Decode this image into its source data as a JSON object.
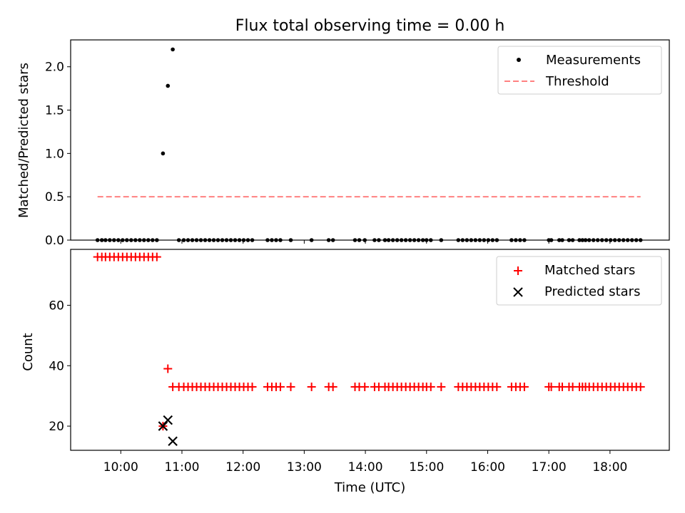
{
  "chart_data": [
    {
      "type": "scatter",
      "title": "Flux total observing time = 0.00 h",
      "xlabel": "",
      "ylabel": "Matched/Predicted stars",
      "xlim": [
        9.18,
        18.97
      ],
      "ylim": [
        0.0,
        2.31
      ],
      "yticks": [
        0.0,
        0.5,
        1.0,
        1.5,
        2.0
      ],
      "ytick_labels": [
        "0.0",
        "0.5",
        "1.0",
        "1.5",
        "2.0"
      ],
      "legend": {
        "position": "upper right",
        "entries": [
          "Measurements",
          "Threshold"
        ]
      },
      "colors": {
        "measurements": "#000000",
        "threshold": "#ff8080"
      },
      "series": [
        {
          "name": "Measurements",
          "marker": "dot",
          "x": [
            9.62,
            9.69,
            9.75,
            9.82,
            9.89,
            9.96,
            10.03,
            10.1,
            10.17,
            10.24,
            10.31,
            10.38,
            10.45,
            10.52,
            10.59,
            10.69,
            10.77,
            10.85,
            10.95,
            11.03,
            11.1,
            11.17,
            11.24,
            11.31,
            11.38,
            11.45,
            11.52,
            11.59,
            11.66,
            11.73,
            11.8,
            11.87,
            11.94,
            12.01,
            12.08,
            12.15,
            12.4,
            12.47,
            12.54,
            12.61,
            12.78,
            13.12,
            13.4,
            13.47,
            13.83,
            13.9,
            13.99,
            14.15,
            14.22,
            14.32,
            14.38,
            14.45,
            14.52,
            14.59,
            14.66,
            14.73,
            14.8,
            14.87,
            14.94,
            15.0,
            15.07,
            15.24,
            15.52,
            15.59,
            15.66,
            15.73,
            15.8,
            15.87,
            15.94,
            16.01,
            16.08,
            16.15,
            16.39,
            16.46,
            16.53,
            16.6,
            17.0,
            17.04,
            17.17,
            17.22,
            17.33,
            17.39,
            17.5,
            17.55,
            17.6,
            17.66,
            17.73,
            17.8,
            17.87,
            17.94,
            18.01,
            18.08,
            18.15,
            18.22,
            18.29,
            18.36,
            18.43,
            18.5
          ],
          "y": [
            0,
            0,
            0,
            0,
            0,
            0,
            0,
            0,
            0,
            0,
            0,
            0,
            0,
            0,
            0,
            1.0,
            1.78,
            2.2,
            0,
            0,
            0,
            0,
            0,
            0,
            0,
            0,
            0,
            0,
            0,
            0,
            0,
            0,
            0,
            0,
            0,
            0,
            0,
            0,
            0,
            0,
            0,
            0,
            0,
            0,
            0,
            0,
            0,
            0,
            0,
            0,
            0,
            0,
            0,
            0,
            0,
            0,
            0,
            0,
            0,
            0,
            0,
            0,
            0,
            0,
            0,
            0,
            0,
            0,
            0,
            0,
            0,
            0,
            0,
            0,
            0,
            0,
            0,
            0,
            0,
            0,
            0,
            0,
            0,
            0,
            0,
            0,
            0,
            0,
            0,
            0,
            0,
            0,
            0,
            0,
            0,
            0,
            0,
            0
          ]
        },
        {
          "name": "Threshold",
          "style": "dashed",
          "x": [
            9.62,
            18.5
          ],
          "y": [
            0.5,
            0.5
          ]
        }
      ]
    },
    {
      "type": "scatter",
      "title": "",
      "xlabel": "Time (UTC)",
      "ylabel": "Count",
      "xlim": [
        9.18,
        18.97
      ],
      "ylim": [
        12.0,
        78.5
      ],
      "yticks": [
        20,
        40,
        60
      ],
      "ytick_labels": [
        "20",
        "40",
        "60"
      ],
      "xticks": [
        10,
        11,
        12,
        13,
        14,
        15,
        16,
        17,
        18
      ],
      "xtick_labels": [
        "10:00",
        "11:00",
        "12:00",
        "13:00",
        "14:00",
        "15:00",
        "16:00",
        "17:00",
        "18:00"
      ],
      "legend": {
        "position": "upper right",
        "entries": [
          "Matched stars",
          "Predicted stars"
        ]
      },
      "colors": {
        "matched": "#ff0000",
        "predicted": "#000000"
      },
      "series": [
        {
          "name": "Matched stars",
          "marker": "plus",
          "x": [
            9.62,
            9.69,
            9.75,
            9.82,
            9.89,
            9.96,
            10.03,
            10.1,
            10.17,
            10.24,
            10.31,
            10.38,
            10.45,
            10.52,
            10.59,
            10.69,
            10.77,
            10.85,
            10.95,
            11.03,
            11.1,
            11.17,
            11.24,
            11.31,
            11.38,
            11.45,
            11.52,
            11.59,
            11.66,
            11.73,
            11.8,
            11.87,
            11.94,
            12.01,
            12.08,
            12.15,
            12.4,
            12.47,
            12.54,
            12.61,
            12.78,
            13.12,
            13.4,
            13.47,
            13.83,
            13.9,
            13.99,
            14.15,
            14.22,
            14.32,
            14.38,
            14.45,
            14.52,
            14.59,
            14.66,
            14.73,
            14.8,
            14.87,
            14.94,
            15.0,
            15.07,
            15.24,
            15.52,
            15.59,
            15.66,
            15.73,
            15.8,
            15.87,
            15.94,
            16.01,
            16.08,
            16.15,
            16.39,
            16.46,
            16.53,
            16.6,
            17.0,
            17.04,
            17.17,
            17.22,
            17.33,
            17.39,
            17.5,
            17.55,
            17.6,
            17.66,
            17.73,
            17.8,
            17.87,
            17.94,
            18.01,
            18.08,
            18.15,
            18.22,
            18.29,
            18.36,
            18.43,
            18.5
          ],
          "y": [
            76,
            76,
            76,
            76,
            76,
            76,
            76,
            76,
            76,
            76,
            76,
            76,
            76,
            76,
            76,
            20,
            39,
            33,
            33,
            33,
            33,
            33,
            33,
            33,
            33,
            33,
            33,
            33,
            33,
            33,
            33,
            33,
            33,
            33,
            33,
            33,
            33,
            33,
            33,
            33,
            33,
            33,
            33,
            33,
            33,
            33,
            33,
            33,
            33,
            33,
            33,
            33,
            33,
            33,
            33,
            33,
            33,
            33,
            33,
            33,
            33,
            33,
            33,
            33,
            33,
            33,
            33,
            33,
            33,
            33,
            33,
            33,
            33,
            33,
            33,
            33,
            33,
            33,
            33,
            33,
            33,
            33,
            33,
            33,
            33,
            33,
            33,
            33,
            33,
            33,
            33,
            33,
            33,
            33,
            33,
            33,
            33,
            33
          ]
        },
        {
          "name": "Predicted stars",
          "marker": "x",
          "x": [
            10.69,
            10.77,
            10.85
          ],
          "y": [
            20,
            22,
            15
          ]
        }
      ]
    }
  ]
}
